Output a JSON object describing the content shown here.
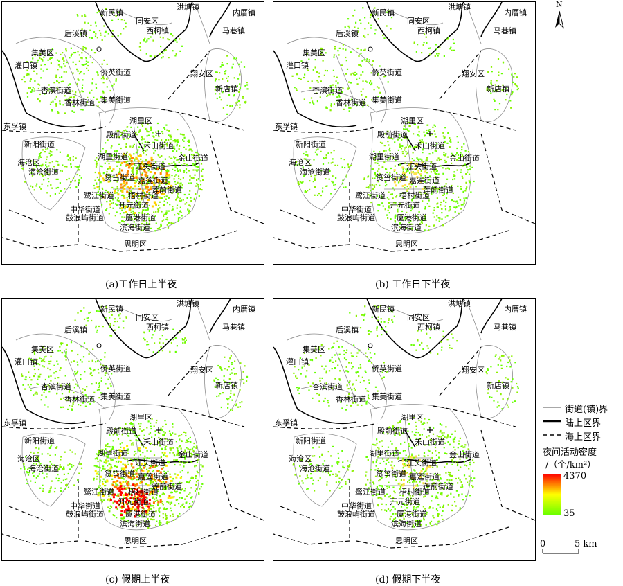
{
  "panels": [
    {
      "caption": "(a)工作日上半夜",
      "heat": "high"
    },
    {
      "caption": "(b) 工作日下半夜",
      "heat": "low"
    },
    {
      "caption": "(c) 假期上半夜",
      "heat": "max"
    },
    {
      "caption": "(d) 假期下半夜",
      "heat": "low"
    }
  ],
  "place_labels": [
    "新民镇",
    "同安区",
    "洪塘镇",
    "内厝镇",
    "后溪镇",
    "西柯镇",
    "马巷镇",
    "集美区",
    "灌口镇",
    "侨英街道",
    "翔安区",
    "杏滨街道",
    "新店镇",
    "香林街道",
    "集美街道",
    "湖里区",
    "殿前街道",
    "东孚镇",
    "禾山街道",
    "新阳街道",
    "金山街道",
    "湖里街道",
    "海沧区",
    "江头街道",
    "海沧街道",
    "筼筜街道",
    "嘉莲街道",
    "鹭江街道",
    "梧村街道",
    "莲前街道",
    "开元街道",
    "中华街道",
    "鼓浪屿街道",
    "厦港街道",
    "滨海街道",
    "思明区"
  ],
  "north_label": "N",
  "legend": {
    "street_boundary": "街道(镇)界",
    "land_boundary": "陆上区界",
    "sea_boundary": "海上区界",
    "density_title": "夜间活动密度",
    "density_unit": "/（个/km²）",
    "max_value": "4370",
    "min_value": "35",
    "colors": {
      "max": "#ff0000",
      "mid": "#ffff00",
      "min": "#66ff00"
    }
  },
  "scale_bar": {
    "zero": "0",
    "end": "5 km"
  }
}
